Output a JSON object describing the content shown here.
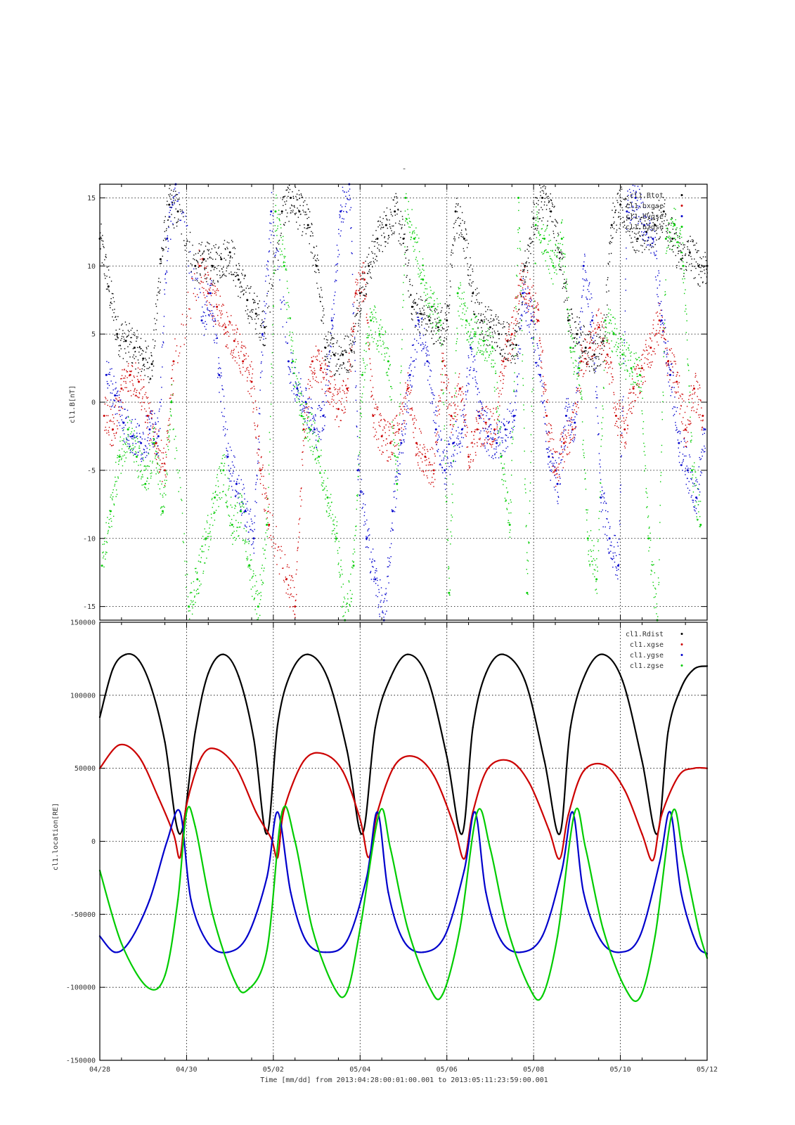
{
  "figure": {
    "title": "-",
    "xlabel": "Time [mm/dd]  from 2013:04:28:00:01:00.001  to  2013:05:11:23:59:00.001"
  },
  "colors": {
    "black": "#000000",
    "red": "#cc0000",
    "blue": "#0000cc",
    "green": "#00cc00",
    "grid": "#000000",
    "frame": "#000000"
  },
  "chart_data": [
    {
      "type": "scatter",
      "panel": "top",
      "title": "-",
      "ylabel": "cl1.B[nT]",
      "xlabel": "",
      "xlim": [
        0,
        14
      ],
      "ylim": [
        -16,
        16
      ],
      "x_unit": "days since 04/28 00:00",
      "x_ticks": [
        0,
        2,
        4,
        6,
        8,
        10,
        12,
        14
      ],
      "x_tick_labels": [
        "04/28",
        "04/30",
        "05/02",
        "05/04",
        "05/06",
        "05/08",
        "05/10",
        "05/12"
      ],
      "y_ticks": [
        -15,
        -10,
        -5,
        0,
        5,
        10,
        15
      ],
      "y_tick_labels": [
        "-15",
        "-10",
        "-5",
        "0",
        "5",
        "10",
        "15"
      ],
      "grid": true,
      "legend_position": "top-right",
      "series": [
        {
          "name": "cl1.Btot",
          "color": "black",
          "x": [
            0.0,
            0.2,
            0.4,
            0.6,
            0.8,
            1.0,
            1.2,
            1.4,
            1.6,
            1.8,
            2.2,
            2.4,
            2.6,
            2.8,
            3.0,
            3.2,
            3.4,
            3.6,
            3.8,
            4.2,
            4.4,
            4.6,
            4.8,
            5.0,
            5.2,
            5.4,
            5.6,
            5.8,
            6.0,
            6.2,
            6.4,
            6.6,
            6.8,
            7.0,
            7.2,
            7.4,
            7.6,
            7.8,
            8.0,
            8.2,
            8.4,
            8.6,
            8.8,
            9.0,
            9.2,
            9.4,
            9.6,
            9.8,
            10.0,
            10.2,
            10.4,
            10.6,
            10.8,
            11.0,
            11.2,
            11.4,
            11.6,
            11.8,
            12.0,
            12.2,
            12.4,
            12.6,
            12.8,
            13.0,
            13.2,
            13.4,
            13.6,
            13.8,
            14.0
          ],
          "y": [
            12.0,
            8.5,
            5.0,
            4.5,
            4.0,
            3.2,
            2.8,
            10.5,
            14.5,
            14.0,
            10.0,
            10.5,
            10.0,
            10.5,
            11.0,
            9.0,
            7.5,
            6.5,
            5.5,
            14.0,
            15.0,
            14.0,
            13.0,
            10.0,
            4.0,
            3.5,
            3.5,
            3.8,
            8.0,
            10.0,
            12.0,
            13.0,
            14.0,
            12.0,
            7.0,
            6.5,
            6.0,
            5.5,
            6.0,
            14.0,
            12.0,
            8.0,
            6.0,
            5.5,
            5.0,
            4.5,
            4.2,
            10.0,
            13.5,
            15.0,
            14.0,
            11.0,
            6.0,
            5.0,
            4.0,
            3.5,
            4.5,
            13.0,
            14.5,
            13.5,
            12.0,
            12.5,
            13.0,
            14.0,
            12.0,
            10.5,
            11.0,
            10.0,
            10.0
          ]
        },
        {
          "name": "cl1.bxgse",
          "color": "red",
          "x": [
            0.1,
            0.3,
            0.5,
            0.7,
            0.9,
            1.1,
            1.3,
            1.5,
            1.7,
            2.3,
            2.5,
            2.7,
            2.9,
            3.1,
            3.3,
            3.5,
            3.7,
            3.9,
            4.3,
            4.5,
            4.7,
            4.9,
            5.1,
            5.3,
            5.5,
            5.7,
            5.9,
            6.1,
            6.3,
            6.5,
            6.7,
            6.9,
            7.1,
            7.3,
            7.5,
            7.7,
            7.9,
            8.1,
            8.3,
            8.5,
            8.7,
            8.9,
            9.1,
            9.3,
            9.5,
            9.7,
            9.9,
            10.1,
            10.3,
            10.5,
            10.7,
            10.9,
            11.1,
            11.3,
            11.5,
            11.7,
            11.9,
            12.1,
            12.3,
            12.5,
            12.7,
            12.9,
            13.1,
            13.3,
            13.5,
            13.7,
            13.9
          ],
          "y": [
            -1.0,
            -2.0,
            1.0,
            2.0,
            1.5,
            -1.0,
            -3.0,
            -5.0,
            3.0,
            10.0,
            8.0,
            7.0,
            5.5,
            4.5,
            3.0,
            1.5,
            -5.0,
            -9.0,
            -13.0,
            -15.0,
            -2.0,
            3.0,
            2.5,
            1.0,
            -0.5,
            1.0,
            8.0,
            9.0,
            -1.0,
            -2.5,
            -3.0,
            -2.0,
            1.0,
            -3.0,
            -4.0,
            -5.0,
            3.0,
            -1.0,
            1.0,
            -4.0,
            -2.0,
            -1.5,
            -2.0,
            3.0,
            5.0,
            9.0,
            8.0,
            6.0,
            -1.0,
            -5.0,
            -3.0,
            -2.0,
            3.0,
            4.0,
            5.5,
            3.5,
            -1.0,
            -2.0,
            1.0,
            2.5,
            4.0,
            6.0,
            3.0,
            1.5,
            -2.0,
            1.0,
            -1.0
          ]
        },
        {
          "name": "cl1.bygse",
          "color": "blue",
          "x": [
            0.15,
            0.35,
            0.55,
            0.75,
            0.95,
            1.15,
            1.35,
            1.55,
            1.75,
            2.35,
            2.55,
            2.75,
            2.95,
            3.15,
            3.35,
            3.55,
            3.75,
            3.95,
            4.35,
            4.55,
            4.75,
            4.95,
            5.15,
            5.35,
            5.55,
            5.75,
            5.95,
            6.15,
            6.35,
            6.55,
            6.75,
            6.95,
            7.15,
            7.35,
            7.55,
            7.75,
            7.95,
            8.15,
            8.35,
            8.55,
            8.75,
            8.95,
            9.15,
            9.35,
            9.55,
            9.75,
            9.95,
            10.15,
            10.35,
            10.55,
            10.75,
            10.95,
            11.15,
            11.35,
            11.55,
            11.75,
            11.95,
            12.15,
            12.35,
            12.55,
            12.75,
            12.95,
            13.15,
            13.35,
            13.55,
            13.75,
            13.95
          ],
          "y": [
            2.0,
            0.5,
            -1.5,
            -2.5,
            -3.0,
            -2.0,
            -2.5,
            12.0,
            16.0,
            6.0,
            8.0,
            2.0,
            -4.0,
            -6.0,
            -8.0,
            -10.0,
            5.0,
            14.0,
            3.0,
            1.0,
            0.0,
            -2.0,
            -1.0,
            6.0,
            14.0,
            16.0,
            -5.0,
            -10.0,
            -13.0,
            -16.0,
            -8.0,
            -3.0,
            2.0,
            6.0,
            3.0,
            -2.0,
            -5.0,
            -3.0,
            -2.0,
            4.0,
            -1.0,
            -2.5,
            -3.0,
            -2.0,
            -1.0,
            8.0,
            6.0,
            2.0,
            -4.0,
            -6.0,
            -1.0,
            -1.5,
            10.0,
            6.0,
            -7.0,
            -10.0,
            -12.0,
            14.0,
            15.0,
            13.0,
            12.0,
            6.0,
            2.0,
            -3.0,
            -5.0,
            -7.0,
            -2.0
          ]
        },
        {
          "name": "cl1.bzgse",
          "color": "green",
          "x": [
            0.05,
            0.25,
            0.45,
            0.65,
            0.85,
            1.05,
            1.25,
            1.45,
            1.65,
            2.05,
            2.25,
            2.45,
            2.65,
            2.85,
            3.05,
            3.25,
            3.45,
            3.65,
            3.85,
            4.05,
            4.25,
            4.45,
            4.65,
            4.85,
            5.05,
            5.25,
            5.45,
            5.65,
            5.85,
            6.05,
            6.25,
            6.45,
            6.65,
            6.85,
            7.05,
            7.25,
            7.45,
            7.65,
            7.85,
            8.05,
            8.25,
            8.45,
            8.65,
            8.85,
            9.05,
            9.25,
            9.45,
            9.65,
            9.85,
            10.05,
            10.25,
            10.45,
            10.65,
            10.85,
            11.05,
            11.25,
            11.45,
            11.65,
            11.85,
            12.05,
            12.25,
            12.45,
            12.65,
            12.85,
            13.05,
            13.25,
            13.45,
            13.65,
            13.85
          ],
          "y": [
            -12.0,
            -8.0,
            -4.0,
            -2.0,
            -4.0,
            -6.0,
            -3.0,
            -8.0,
            0.0,
            -15.0,
            -13.0,
            -10.0,
            -7.0,
            -5.0,
            -9.0,
            -8.0,
            -12.0,
            -15.0,
            -9.0,
            14.0,
            10.0,
            3.0,
            -1.0,
            -2.0,
            -4.0,
            -7.0,
            -10.0,
            -16.0,
            -12.0,
            2.0,
            6.0,
            5.0,
            3.0,
            -6.0,
            15.0,
            12.0,
            9.0,
            7.0,
            6.0,
            -14.0,
            8.0,
            6.0,
            5.0,
            4.5,
            4.0,
            -4.0,
            -9.0,
            15.0,
            -14.0,
            13.0,
            12.0,
            10.0,
            12.0,
            4.0,
            2.5,
            -10.0,
            -13.0,
            6.0,
            5.0,
            3.5,
            2.5,
            2.0,
            -10.0,
            -16.0,
            12.0,
            13.0,
            10.0,
            -5.0,
            -9.0
          ]
        }
      ]
    },
    {
      "type": "scatter",
      "panel": "bottom",
      "title": "",
      "ylabel": "cl1.location[RE]",
      "xlabel": "Time [mm/dd]  from 2013:04:28:00:01:00.001  to  2013:05:11:23:59:00.001",
      "xlim": [
        0,
        14
      ],
      "ylim": [
        -150000,
        150000
      ],
      "x_unit": "days since 04/28 00:00",
      "x_ticks": [
        0,
        2,
        4,
        6,
        8,
        10,
        12,
        14
      ],
      "x_tick_labels": [
        "04/28",
        "04/30",
        "05/02",
        "05/04",
        "05/06",
        "05/08",
        "05/10",
        "05/12"
      ],
      "y_ticks": [
        -150000,
        -100000,
        -50000,
        0,
        50000,
        100000,
        150000
      ],
      "y_tick_labels": [
        "-150000",
        "-100000",
        "-50000",
        "0",
        "50000",
        "100000",
        "150000"
      ],
      "grid": true,
      "legend_position": "top-right",
      "series": [
        {
          "name": "cl1.Rdist",
          "color": "black",
          "x": [
            0.0,
            0.3,
            0.6,
            0.9,
            1.2,
            1.5,
            1.85,
            2.2,
            2.5,
            2.85,
            3.2,
            3.55,
            3.85,
            4.1,
            4.4,
            4.8,
            5.25,
            5.7,
            6.05,
            6.35,
            6.7,
            7.1,
            7.55,
            8.0,
            8.35,
            8.6,
            8.9,
            9.3,
            9.8,
            10.25,
            10.6,
            10.85,
            11.2,
            11.6,
            12.05,
            12.5,
            12.85,
            13.1,
            13.4,
            13.7,
            14.0
          ],
          "y": [
            85000,
            118000,
            128000,
            124000,
            104000,
            68000,
            5000,
            75000,
            115000,
            128000,
            113000,
            70000,
            5000,
            80000,
            115000,
            128000,
            112000,
            62000,
            5000,
            78000,
            112000,
            128000,
            112000,
            58000,
            5000,
            78000,
            115000,
            128000,
            110000,
            55000,
            5000,
            78000,
            115000,
            128000,
            110000,
            55000,
            5000,
            75000,
            105000,
            118000,
            120000
          ]
        },
        {
          "name": "cl1.xgse",
          "color": "red",
          "x": [
            0.0,
            0.45,
            0.9,
            1.35,
            1.7,
            1.85,
            2.0,
            2.35,
            2.7,
            3.15,
            3.6,
            3.95,
            4.1,
            4.25,
            4.7,
            5.15,
            5.6,
            6.0,
            6.2,
            6.4,
            6.8,
            7.25,
            7.7,
            8.15,
            8.4,
            8.6,
            8.95,
            9.45,
            9.9,
            10.35,
            10.6,
            10.8,
            11.15,
            11.65,
            12.1,
            12.5,
            12.75,
            12.95,
            13.35,
            13.7,
            14.0
          ],
          "y": [
            50000,
            66000,
            58000,
            30000,
            5000,
            -11000,
            25000,
            58000,
            63000,
            50000,
            20000,
            2000,
            -11000,
            22000,
            55000,
            60000,
            48000,
            15000,
            -11000,
            20000,
            52000,
            58000,
            45000,
            12000,
            -12000,
            20000,
            50000,
            55000,
            40000,
            8000,
            -12000,
            18000,
            48000,
            52000,
            35000,
            5000,
            -13000,
            18000,
            45000,
            50000,
            50000
          ]
        },
        {
          "name": "cl1.ygse",
          "color": "blue",
          "x": [
            0.0,
            0.35,
            0.7,
            1.15,
            1.55,
            1.85,
            2.1,
            2.5,
            2.95,
            3.4,
            3.85,
            4.1,
            4.4,
            4.75,
            5.2,
            5.7,
            6.15,
            6.4,
            6.65,
            7.0,
            7.45,
            7.95,
            8.4,
            8.65,
            8.9,
            9.25,
            9.7,
            10.2,
            10.65,
            10.9,
            11.15,
            11.55,
            12.0,
            12.45,
            12.9,
            13.15,
            13.4,
            13.75,
            14.0
          ],
          "y": [
            -65000,
            -76000,
            -68000,
            -40000,
            0,
            20000,
            -40000,
            -70000,
            -76000,
            -65000,
            -25000,
            20000,
            -35000,
            -68000,
            -76000,
            -68000,
            -25000,
            20000,
            -35000,
            -68000,
            -76000,
            -65000,
            -20000,
            20000,
            -35000,
            -68000,
            -76000,
            -65000,
            -20000,
            20000,
            -35000,
            -68000,
            -76000,
            -65000,
            -15000,
            20000,
            -35000,
            -70000,
            -77000
          ]
        },
        {
          "name": "cl1.zgse",
          "color": "green",
          "x": [
            0.0,
            0.5,
            1.1,
            1.5,
            1.8,
            2.0,
            2.2,
            2.6,
            3.1,
            3.4,
            3.85,
            4.2,
            4.5,
            4.9,
            5.4,
            5.7,
            6.0,
            6.45,
            6.7,
            7.1,
            7.6,
            7.9,
            8.3,
            8.7,
            9.0,
            9.4,
            9.9,
            10.2,
            10.55,
            10.95,
            11.2,
            11.6,
            12.1,
            12.45,
            12.8,
            13.2,
            13.45,
            13.8,
            14.0
          ],
          "y": [
            -20000,
            -70000,
            -100000,
            -92000,
            -40000,
            20000,
            10000,
            -50000,
            -95000,
            -102000,
            -75000,
            20000,
            0,
            -60000,
            -100000,
            -103000,
            -60000,
            20000,
            -5000,
            -60000,
            -100000,
            -105000,
            -60000,
            20000,
            -5000,
            -60000,
            -100000,
            -106000,
            -65000,
            20000,
            -5000,
            -60000,
            -100000,
            -107000,
            -65000,
            20000,
            -10000,
            -60000,
            -80000
          ]
        }
      ]
    }
  ]
}
